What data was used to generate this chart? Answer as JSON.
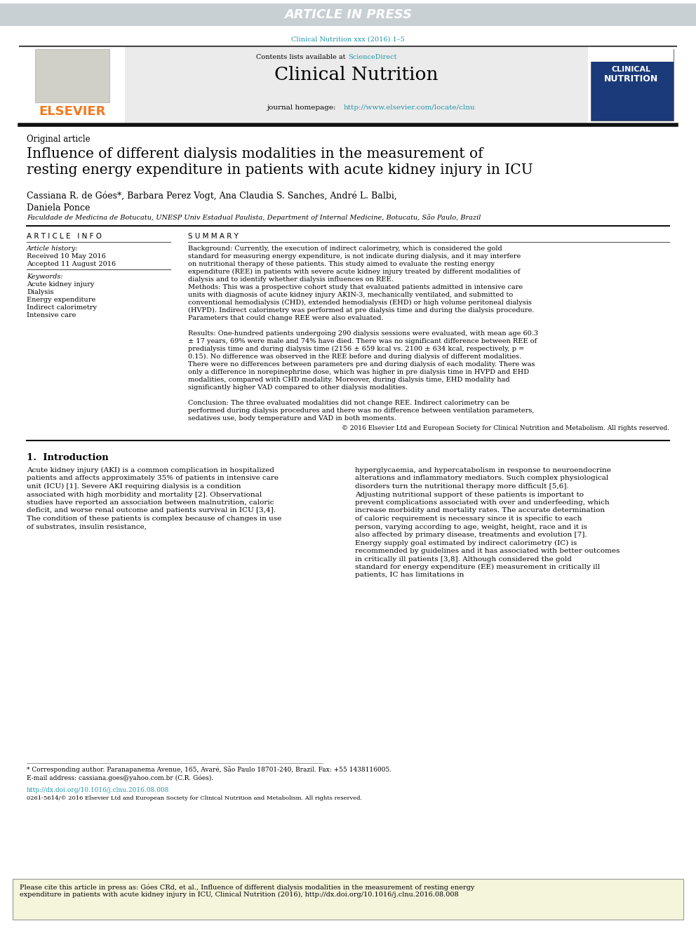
{
  "article_in_press_text": "ARTICLE IN PRESS",
  "article_in_press_bg": "#c8d0d4",
  "article_in_press_color": "#ffffff",
  "journal_ref": "Clinical Nutrition xxx (2016) 1–5",
  "journal_ref_color": "#2196a8",
  "contents_text": "Contents lists available at ",
  "sciencedirect_text": "ScienceDirect",
  "sciencedirect_color": "#2196a8",
  "journal_name": "Clinical Nutrition",
  "journal_homepage_text": "journal homepage: ",
  "journal_url": "http://www.elsevier.com/locate/clnu",
  "journal_url_color": "#2196a8",
  "elsevier_color": "#f47920",
  "section_label": "Original article",
  "paper_title": "Influence of different dialysis modalities in the measurement of\nresting energy expenditure in patients with acute kidney injury in ICU",
  "authors": "Cassiana R. de Góes*, Barbara Perez Vogt, Ana Claudia S. Sanches, André L. Balbi,\nDaniela Ponce",
  "affiliation": "Faculdade de Medicina de Botucatu, UNESP Univ Estadual Paulista, Department of Internal Medicine, Botucatu, São Paulo, Brazil",
  "article_info_header": "A R T I C L E   I N F O",
  "article_history_label": "Article history:",
  "received": "Received 10 May 2016",
  "accepted": "Accepted 11 August 2016",
  "keywords_label": "Keywords:",
  "keywords": [
    "Acute kidney injury",
    "Dialysis",
    "Energy expenditure",
    "Indirect calorimetry",
    "Intensive care"
  ],
  "summary_header": "S U M M A R Y",
  "background_label": "Background:",
  "background_text": "  Currently, the execution of indirect calorimetry, which is considered the gold standard for measuring energy expenditure, is not indicate during dialysis, and it may interfere on nutritional therapy of these patients. This study aimed to evaluate the resting energy expenditure (REE) in patients with severe acute kidney injury treated by different modalities of dialysis and to identify whether dialysis influences on REE.",
  "methods_label": "Methods:",
  "methods_text": " This was a prospective cohort study that evaluated patients admitted in intensive care units with diagnosis of acute kidney injury AKIN-3, mechanically ventilated, and submitted to conventional hemodialysis (CHD), extended hemodialysis (EHD) or high volume peritoneal dialysis (HVPD). Indirect calorimetry was performed at pre dialysis time and during the dialysis procedure. Parameters that could change REE were also evaluated.",
  "results_label": "Results:",
  "results_text": " One-hundred patients undergoing 290 dialysis sessions were evaluated, with mean age 60.3 ± 17 years, 69% were male and 74% have died. There was no significant difference between REE of predialysis time and during dialysis time (2156 ± 659 kcal vs. 2100 ± 634 kcal, respectively, p = 0.15). No difference was observed in the REE before and during dialysis of different modalities. There were no differences between parameters pre and during dialysis of each modality. There was only a difference in norepinephrine dose, which was higher in pre dialysis time in HVPD and EHD modalities, compared with CHD modality. Moreover, during dialysis time, EHD modality had significantly higher VAD compared to other dialysis modalities.",
  "conclusion_label": "Conclusion:",
  "conclusion_text": " The three evaluated modalities did not change REE. Indirect calorimetry can be performed during dialysis procedures and there was no difference between ventilation parameters, sedatives use, body temperature and VAD in both moments.",
  "copyright_text": "© 2016 Elsevier Ltd and European Society for Clinical Nutrition and Metabolism. All rights reserved.",
  "intro_header": "1.  Introduction",
  "intro_col1": "Acute kidney injury (AKI) is a common complication in hospitalized patients and affects approximately 35% of patients in intensive care unit (ICU) [1]. Severe AKI requiring dialysis is a condition associated with high morbidity and mortality [2]. Observational studies have reported an association between malnutrition, caloric deficit, and worse renal outcome and patients survival in ICU [3,4]. The condition of these patients is complex because of changes in use of substrates, insulin resistance,",
  "intro_col2": "hyperglycaemia, and hypercatabolism in response to neuroendocrine alterations and inflammatory mediators. Such complex physiological disorders turn the nutritional therapy more difficult [5,6]. Adjusting nutritional support of these patients is important to prevent complications associated with over and underfeeding, which increase morbidity and mortality rates. The accurate determination of caloric requirement is necessary since it is specific to each person, varying according to age, weight, height, race and it is also affected by primary disease, treatments and evolution [7]. Energy supply goal estimated by indirect calorimetry (IC) is recommended by guidelines and it has associated with better outcomes in critically ill patients [3,8]. Although considered the gold standard for energy expenditure (EE) measurement in critically ill patients, IC has limitations in",
  "footnote_corresponding": "* Corresponding author. Paranapanema Avenue, 165, Avaré, São Paulo 18701-240, Brazil. Fax: +55 1438116005.",
  "footnote_email": "E-mail address: cassiana.goes@yahoo.com.br (C.R. Góes).",
  "doi_text": "http://dx.doi.org/10.1016/j.clnu.2016.08.008",
  "issn_text": "0261-5614/© 2016 Elsevier Ltd and European Society for Clinical Nutrition and Metabolism. All rights reserved.",
  "cite_text": "Please cite this article in press as: Góes CRd, et al., Influence of different dialysis modalities in the measurement of resting energy expenditure in patients with acute kidney injury in ICU, Clinical Nutrition (2016), http://dx.doi.org/10.1016/j.clnu.2016.08.008",
  "cite_bg": "#f5f5dc",
  "page_bg": "#ffffff",
  "body_text_color": "#000000"
}
